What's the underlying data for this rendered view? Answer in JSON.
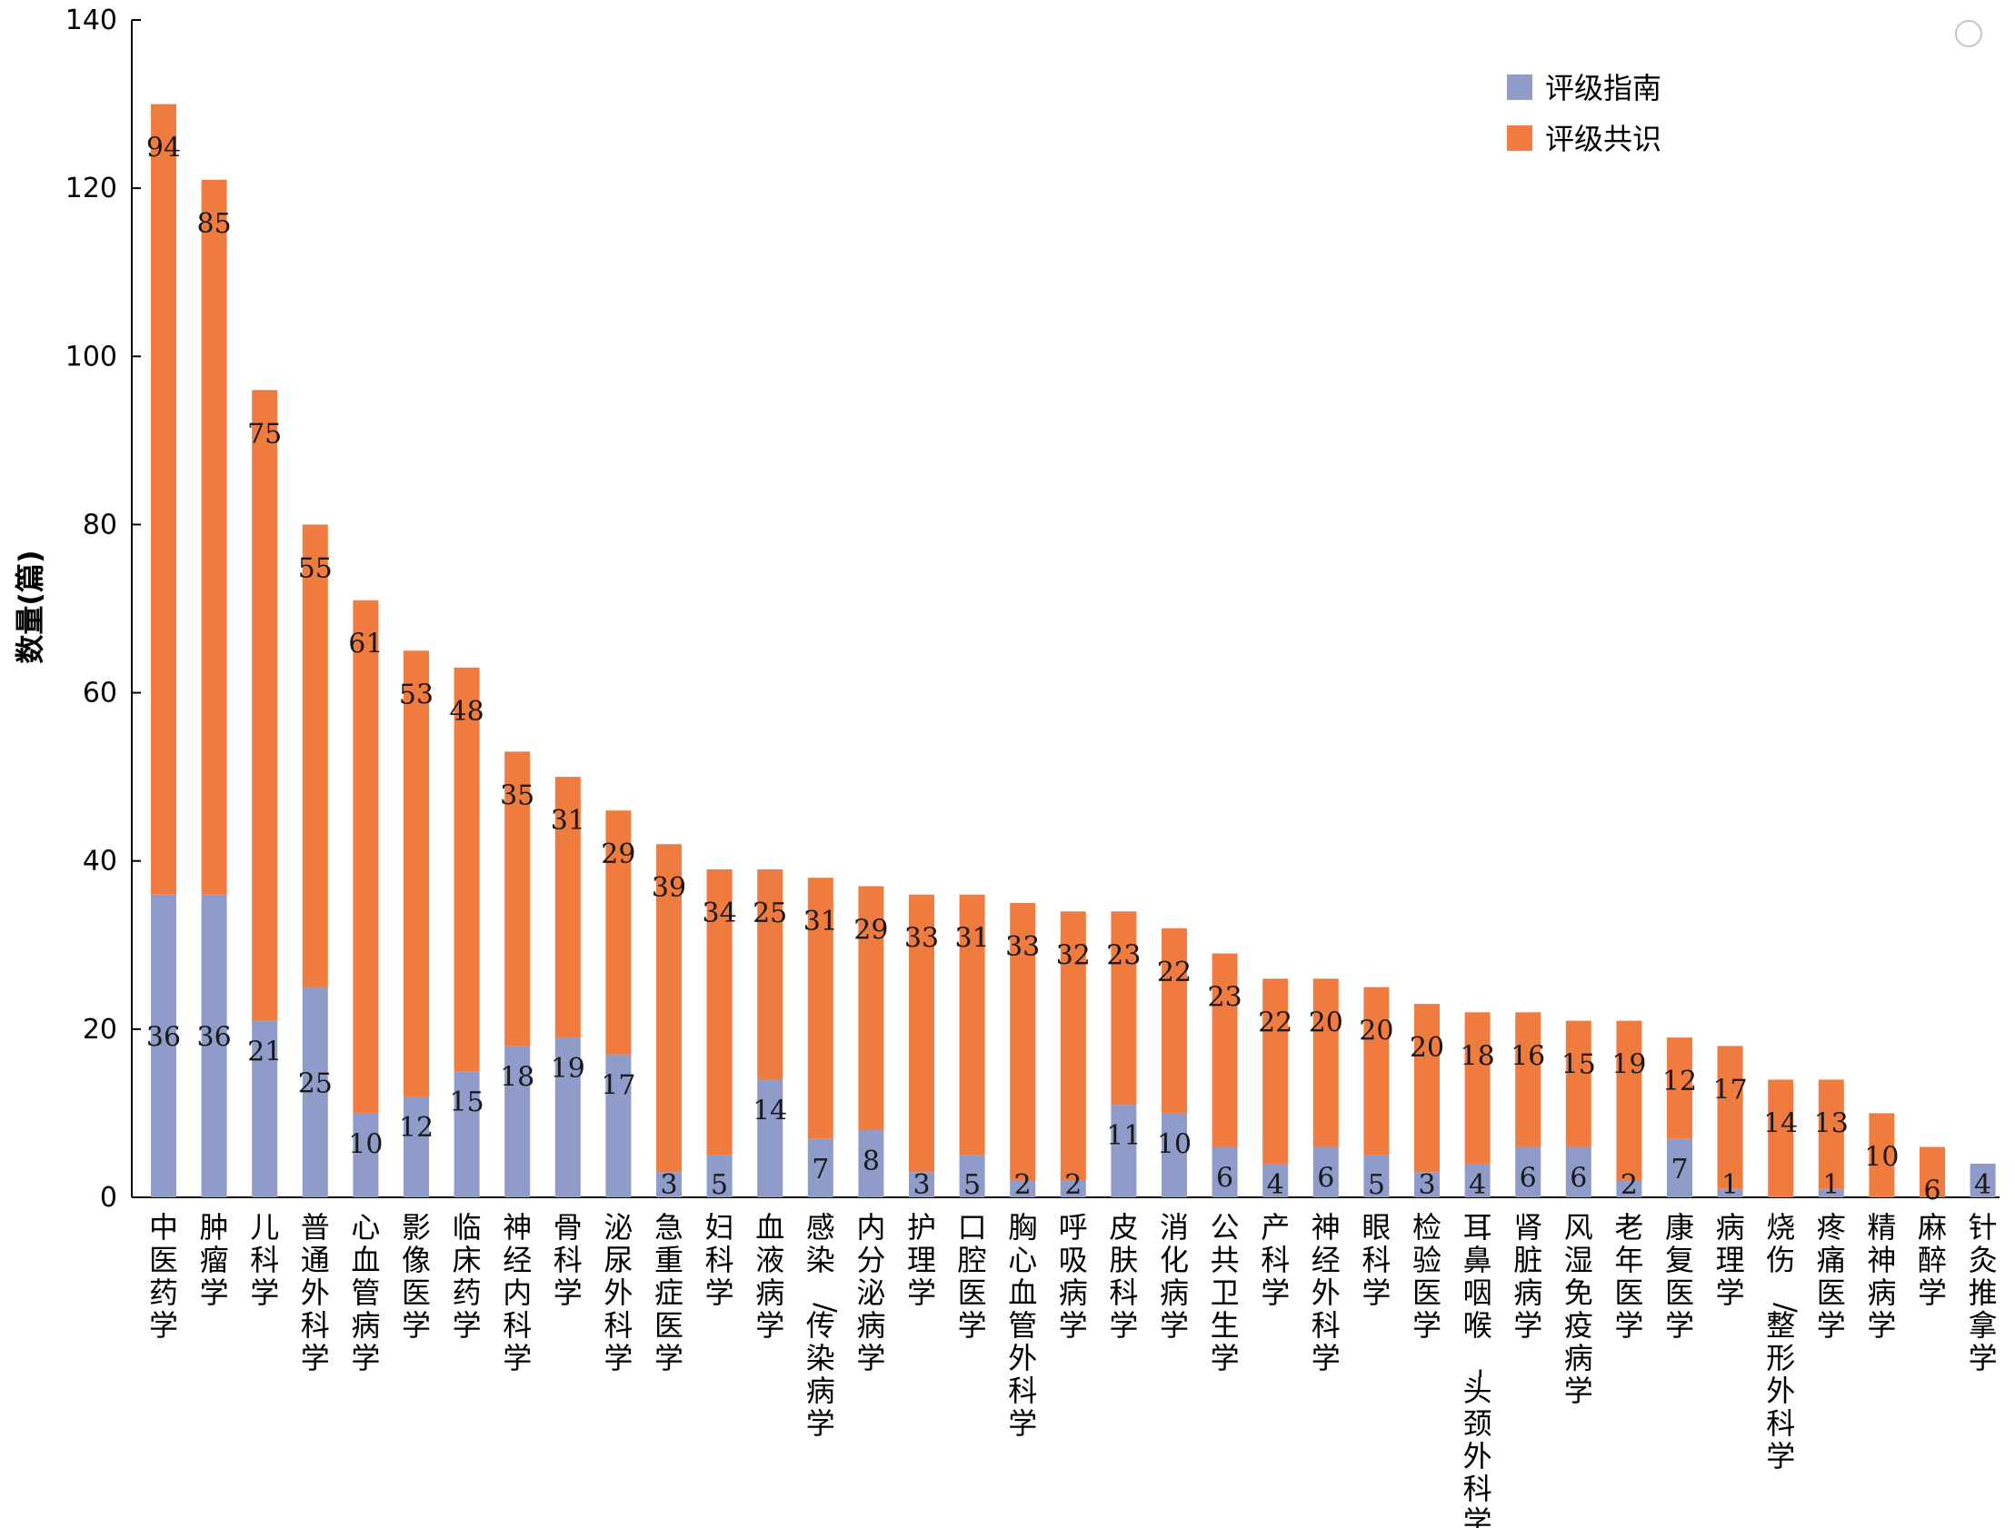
{
  "watermark": "",
  "chart_data": {
    "type": "bar",
    "stacked": true,
    "title": "",
    "xlabel": "",
    "ylabel": "数量(篇)",
    "ylim": [
      0,
      140
    ],
    "yticks": [
      0,
      20,
      40,
      60,
      80,
      100,
      120,
      140
    ],
    "grid": false,
    "legend_position": "top-right",
    "categories": [
      "中医药学",
      "肿瘤学",
      "儿科学",
      "普通外科学",
      "心血管病学",
      "影像医学",
      "临床药学",
      "神经内科学",
      "骨科学",
      "泌尿外科学",
      "急重症医学",
      "妇科学",
      "血液病学",
      "感染/传染病学",
      "内分泌病学",
      "护理学",
      "口腔医学",
      "胸心血管外科学",
      "呼吸病学",
      "皮肤科学",
      "消化病学",
      "公共卫生学",
      "产科学",
      "神经外科学",
      "眼科学",
      "检验医学",
      "耳鼻咽喉-头颈外科学",
      "肾脏病学",
      "风湿免疫病学",
      "老年医学",
      "康复医学",
      "病理学",
      "烧伤/整形外科学",
      "疼痛医学",
      "精神病学",
      "麻醉学",
      "针灸推拿学"
    ],
    "series": [
      {
        "name": "评级指南",
        "color": "#8f9bc8",
        "values": [
          36,
          36,
          21,
          25,
          10,
          12,
          15,
          18,
          19,
          17,
          3,
          5,
          14,
          7,
          8,
          3,
          5,
          2,
          2,
          11,
          10,
          6,
          4,
          6,
          5,
          3,
          4,
          6,
          6,
          2,
          7,
          1,
          0,
          1,
          0,
          0,
          4
        ]
      },
      {
        "name": "评级共识",
        "color": "#f07b3f",
        "values": [
          94,
          85,
          75,
          55,
          61,
          53,
          48,
          35,
          31,
          29,
          39,
          34,
          25,
          31,
          29,
          33,
          31,
          33,
          32,
          23,
          22,
          23,
          22,
          20,
          20,
          20,
          18,
          16,
          15,
          19,
          12,
          17,
          14,
          13,
          10,
          6,
          0
        ]
      }
    ]
  }
}
